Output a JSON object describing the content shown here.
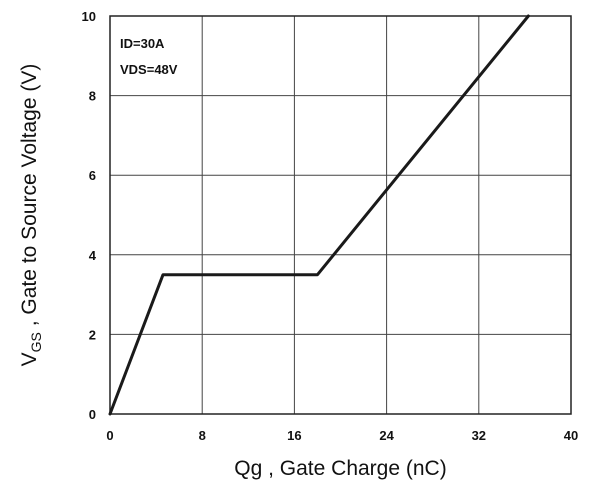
{
  "chart_data": {
    "type": "line",
    "title": "",
    "xlabel": "Qg , Gate Charge (nC)",
    "ylabel": {
      "prefix": "V",
      "subscript": "GS",
      "suffix": " , Gate to Source Voltage (V)"
    },
    "xlim": [
      0,
      40
    ],
    "ylim": [
      0,
      10
    ],
    "xticks": [
      0,
      8,
      16,
      24,
      32,
      40
    ],
    "yticks": [
      0,
      2,
      4,
      6,
      8,
      10
    ],
    "grid": true,
    "annotations": [
      "ID=30A",
      "VDS=48V"
    ],
    "series": [
      {
        "x": [
          0,
          4.6,
          18.0,
          36.3
        ],
        "y": [
          0,
          3.5,
          3.5,
          10
        ]
      }
    ]
  }
}
